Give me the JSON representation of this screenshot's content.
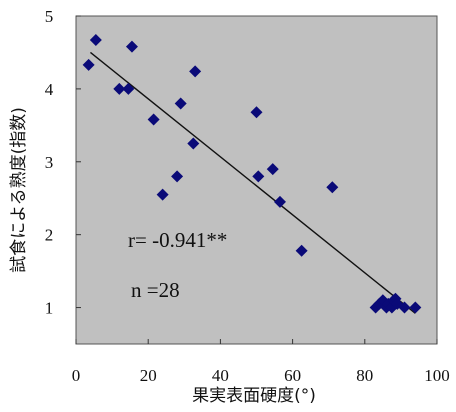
{
  "chart_data": {
    "type": "scatter",
    "xlabel": "果実表面硬度(°)",
    "ylabel": "試食による熟度(指数)",
    "xlim": [
      0,
      100
    ],
    "ylim": [
      0.5,
      5
    ],
    "x_ticks": [
      0,
      20,
      40,
      60,
      80,
      100
    ],
    "y_ticks": [
      1,
      2,
      3,
      4,
      5
    ],
    "x_tick_labels": [
      "0",
      "20",
      "40",
      "60",
      "80",
      "100"
    ],
    "y_tick_labels": [
      "1",
      "2",
      "3",
      "4",
      "5"
    ],
    "grid": false,
    "plot_background": "#c0c0c0",
    "marker": "diamond",
    "marker_color": "#0a0a78",
    "points": [
      {
        "x": 3.5,
        "y": 4.33
      },
      {
        "x": 5.5,
        "y": 4.67
      },
      {
        "x": 12,
        "y": 4.0
      },
      {
        "x": 14.5,
        "y": 4.0
      },
      {
        "x": 15.5,
        "y": 4.58
      },
      {
        "x": 21.5,
        "y": 3.58
      },
      {
        "x": 24,
        "y": 2.55
      },
      {
        "x": 28,
        "y": 2.8
      },
      {
        "x": 29,
        "y": 3.8
      },
      {
        "x": 32.5,
        "y": 3.25
      },
      {
        "x": 33,
        "y": 4.24
      },
      {
        "x": 50,
        "y": 3.68
      },
      {
        "x": 50.5,
        "y": 2.8
      },
      {
        "x": 54.5,
        "y": 2.9
      },
      {
        "x": 56.5,
        "y": 2.45
      },
      {
        "x": 62.5,
        "y": 1.78
      },
      {
        "x": 71,
        "y": 2.65
      },
      {
        "x": 83,
        "y": 1.0
      },
      {
        "x": 84,
        "y": 1.05
      },
      {
        "x": 85,
        "y": 1.1
      },
      {
        "x": 86,
        "y": 1.0
      },
      {
        "x": 86.5,
        "y": 1.05
      },
      {
        "x": 87.5,
        "y": 1.0
      },
      {
        "x": 88,
        "y": 1.1
      },
      {
        "x": 88.5,
        "y": 1.12
      },
      {
        "x": 89,
        "y": 1.05
      },
      {
        "x": 91,
        "y": 1.0
      },
      {
        "x": 94,
        "y": 1.0
      }
    ],
    "trendline": {
      "x": [
        4,
        94
      ],
      "y": [
        4.5,
        0.92
      ]
    },
    "annotations": [
      "r= -0.941**",
      "n =28"
    ]
  }
}
